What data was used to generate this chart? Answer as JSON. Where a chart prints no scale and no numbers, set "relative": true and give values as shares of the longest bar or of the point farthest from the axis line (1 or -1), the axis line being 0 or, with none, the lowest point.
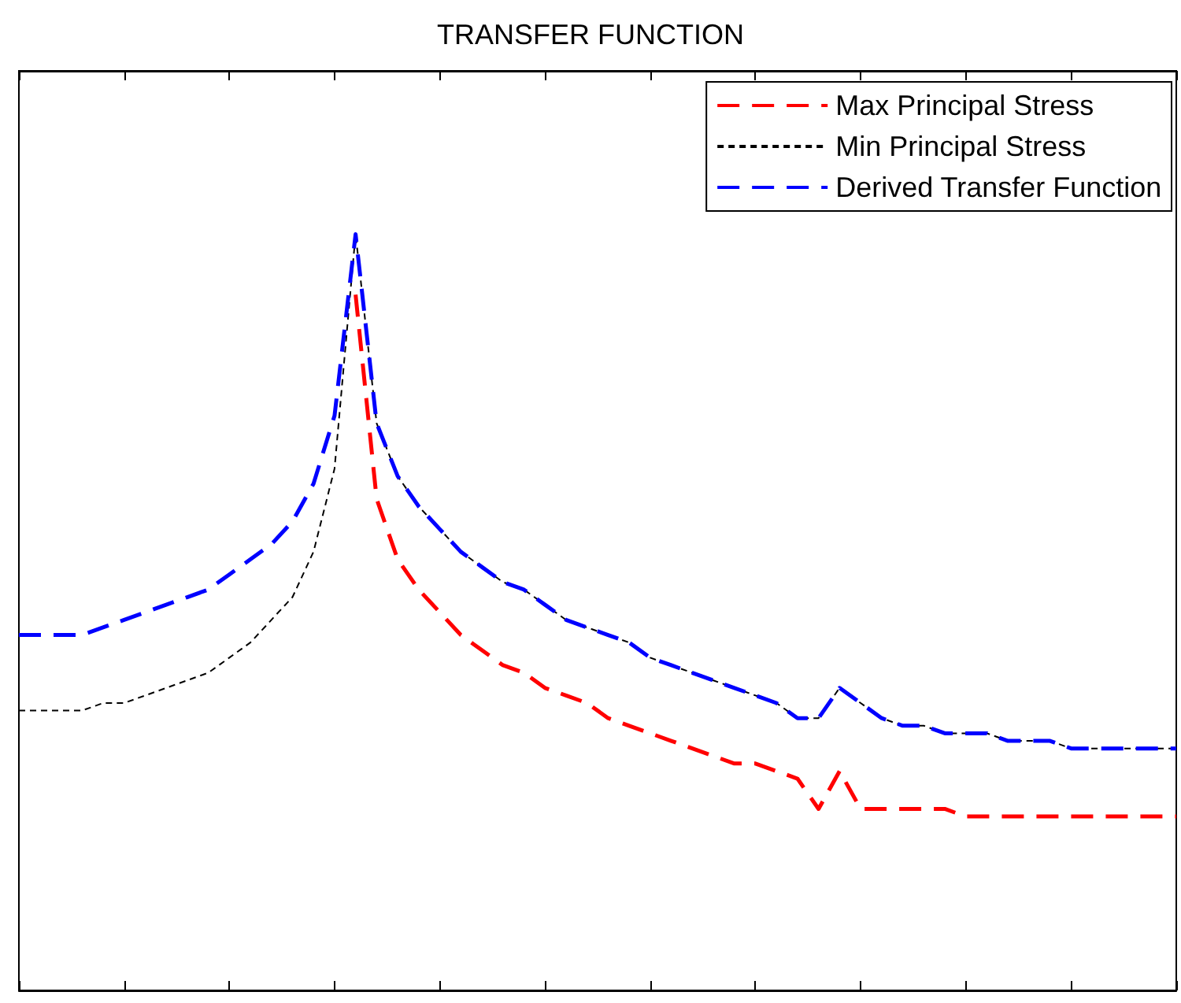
{
  "chart_data": {
    "type": "line",
    "title": "TRANSFER FUNCTION",
    "relative": true,
    "grid": false,
    "legend": "top right",
    "marker": "none",
    "categories": [
      null,
      null,
      null,
      null,
      null,
      null,
      null,
      null,
      null,
      null,
      null,
      null,
      null,
      null,
      null,
      null,
      null,
      null,
      null,
      null,
      null,
      null,
      null,
      null,
      null,
      null,
      null,
      null,
      null,
      null,
      null,
      null,
      null,
      null,
      null,
      null,
      null,
      null,
      null,
      null,
      null,
      null,
      null,
      null,
      null,
      null,
      null,
      null,
      null,
      null,
      null,
      null,
      null,
      null,
      null,
      null
    ],
    "series": [
      {
        "name": "Max Principal Stress",
        "color": "#ff0000",
        "line_style": "dashed",
        "values": [
          null,
          null,
          null,
          null,
          null,
          null,
          null,
          null,
          null,
          null,
          null,
          null,
          null,
          null,
          null,
          null,
          0.92,
          0.65,
          0.57,
          0.53,
          0.5,
          0.47,
          0.45,
          0.43,
          0.42,
          0.4,
          0.39,
          0.38,
          0.36,
          0.35,
          0.34,
          0.33,
          0.32,
          0.31,
          0.3,
          0.3,
          0.29,
          0.28,
          0.24,
          0.29,
          0.24,
          0.24,
          0.24,
          0.24,
          0.24,
          0.23,
          0.23,
          0.23,
          0.23,
          0.23,
          0.23,
          0.23,
          0.23,
          0.23,
          0.23,
          0.23
        ]
      },
      {
        "name": "Min Principal Stress",
        "color": "#000000",
        "line_style": "dotted",
        "values": [
          0.37,
          0.37,
          0.37,
          0.37,
          0.38,
          0.38,
          0.39,
          0.4,
          0.41,
          0.42,
          0.44,
          0.46,
          0.49,
          0.52,
          0.58,
          0.69,
          1,
          0.75,
          0.68,
          0.64,
          0.61,
          0.58,
          0.56,
          0.54,
          0.53,
          0.51,
          0.49,
          0.48,
          0.47,
          0.46,
          0.44,
          0.43,
          0.42,
          0.41,
          0.4,
          0.39,
          0.38,
          0.36,
          0.36,
          0.4,
          0.38,
          0.36,
          0.35,
          0.35,
          0.34,
          0.34,
          0.34,
          0.33,
          0.33,
          0.33,
          0.32,
          0.32,
          0.32,
          0.32,
          0.32,
          0.32
        ]
      },
      {
        "name": "Derived Transfer Function",
        "color": "#0000ff",
        "line_style": "dashed",
        "values": [
          0.47,
          0.47,
          0.47,
          0.47,
          0.48,
          0.49,
          0.5,
          0.51,
          0.52,
          0.53,
          0.55,
          0.57,
          0.59,
          0.62,
          0.67,
          0.76,
          1,
          0.75,
          0.68,
          0.64,
          0.61,
          0.58,
          0.56,
          0.54,
          0.53,
          0.51,
          0.49,
          0.48,
          0.47,
          0.46,
          0.44,
          0.43,
          0.42,
          0.41,
          0.4,
          0.39,
          0.38,
          0.36,
          0.36,
          0.4,
          0.38,
          0.36,
          0.35,
          0.35,
          0.34,
          0.34,
          0.34,
          0.33,
          0.33,
          0.33,
          0.32,
          0.32,
          0.32,
          0.32,
          0.32,
          0.32
        ]
      }
    ]
  }
}
